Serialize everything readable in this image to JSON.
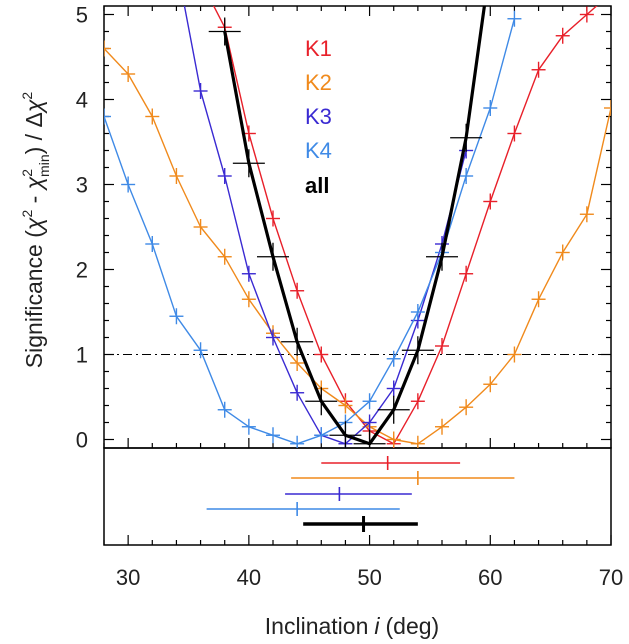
{
  "chart_data": {
    "type": "line",
    "xlabel": "Inclination",
    "xlabel_symbol": "i",
    "xlabel_unit": "(deg)",
    "ylabel": {
      "prefix": "Significance (",
      "chi": "χ",
      "two": "2",
      "minus": " - ",
      "min": "min",
      "suffix": ") / Δ"
    },
    "xlim": [
      28,
      70
    ],
    "ylim": [
      -0.1,
      5.1
    ],
    "xticks": [
      30,
      40,
      50,
      60,
      70
    ],
    "xtick_labels": [
      "30",
      "40",
      "50",
      "60",
      "70"
    ],
    "yticks": [
      0,
      1,
      2,
      3,
      4,
      5
    ],
    "ytick_labels": [
      "0",
      "1",
      "2",
      "3",
      "4",
      "5"
    ],
    "reference_line": {
      "y": 1,
      "style": "dash-dot"
    },
    "legend_position": "top-center",
    "series": [
      {
        "name": "K1",
        "color": "#e8202a",
        "x": [
          36,
          38,
          40,
          42,
          44,
          46,
          48,
          50,
          52,
          54,
          56,
          58,
          60,
          62,
          64,
          66,
          68,
          70
        ],
        "y": [
          5.4,
          4.85,
          3.6,
          2.6,
          1.75,
          1.0,
          0.45,
          0.1,
          -0.05,
          0.45,
          1.1,
          1.95,
          2.8,
          3.6,
          4.35,
          4.75,
          5.0,
          5.25
        ]
      },
      {
        "name": "K2",
        "color": "#f08a1c",
        "x": [
          28,
          30,
          32,
          34,
          36,
          38,
          40,
          42,
          44,
          46,
          48,
          50,
          52,
          54,
          56,
          58,
          60,
          62,
          64,
          66,
          68,
          70
        ],
        "y": [
          4.6,
          4.3,
          3.8,
          3.1,
          2.5,
          2.15,
          1.65,
          1.25,
          0.9,
          0.6,
          0.4,
          0.15,
          0.0,
          -0.05,
          0.15,
          0.38,
          0.65,
          1.0,
          1.65,
          2.2,
          2.65,
          3.9
        ]
      },
      {
        "name": "K3",
        "color": "#3a2ad2",
        "x": [
          34,
          36,
          38,
          40,
          42,
          44,
          46,
          48,
          50,
          52,
          54,
          56,
          58
        ],
        "y": [
          5.6,
          4.1,
          3.1,
          1.95,
          1.2,
          0.55,
          0.05,
          -0.05,
          0.2,
          0.6,
          1.4,
          2.3,
          3.4
        ]
      },
      {
        "name": "K4",
        "color": "#3f8ae6",
        "x": [
          28,
          30,
          32,
          34,
          36,
          38,
          40,
          42,
          44,
          46,
          48,
          50,
          52,
          54,
          56,
          58,
          60,
          62
        ],
        "y": [
          3.8,
          3.0,
          2.3,
          1.45,
          1.05,
          0.35,
          0.15,
          0.05,
          -0.05,
          0.05,
          0.2,
          0.45,
          0.95,
          1.5,
          2.2,
          3.1,
          3.9,
          4.95
        ]
      },
      {
        "name": "all",
        "color": "#000000",
        "x": [
          38,
          40,
          42,
          44,
          46,
          48,
          50,
          52,
          54,
          56,
          58,
          60
        ],
        "y": [
          4.8,
          3.25,
          2.15,
          1.15,
          0.45,
          0.05,
          -0.05,
          0.35,
          1.05,
          2.15,
          3.55,
          5.6
        ]
      }
    ],
    "best_fit": [
      {
        "name": "K1",
        "color": "#e8202a",
        "center": 51.5,
        "lo": 46.0,
        "hi": 57.5
      },
      {
        "name": "K2",
        "color": "#f08a1c",
        "center": 54.0,
        "lo": 43.5,
        "hi": 62.0
      },
      {
        "name": "K3",
        "color": "#3a2ad2",
        "center": 47.5,
        "lo": 43.0,
        "hi": 53.5
      },
      {
        "name": "K4",
        "color": "#3f8ae6",
        "center": 44.0,
        "lo": 36.5,
        "hi": 52.5
      },
      {
        "name": "all",
        "color": "#000000",
        "center": 49.5,
        "lo": 44.5,
        "hi": 54.0
      }
    ]
  }
}
